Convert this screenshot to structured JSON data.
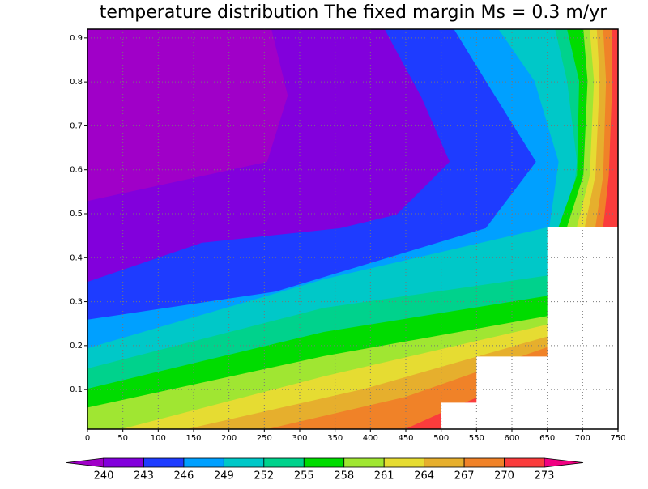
{
  "chart_data": {
    "type": "contour",
    "title": "temperature distribution The fixed margin Ms = 0.3 m/yr",
    "xlim": [
      0,
      750
    ],
    "ylim": [
      0.01,
      0.92
    ],
    "xticks": [
      0,
      50,
      100,
      150,
      200,
      250,
      300,
      350,
      400,
      450,
      500,
      550,
      600,
      650,
      700,
      750
    ],
    "yticks": [
      0.1,
      0.2,
      0.3,
      0.4,
      0.5,
      0.6,
      0.7,
      0.8,
      0.9
    ],
    "grid": true,
    "levels": [
      240,
      243,
      246,
      249,
      252,
      255,
      258,
      261,
      264,
      267,
      270,
      273
    ],
    "colors": [
      "#a000c8",
      "#8200dc",
      "#1e3cff",
      "#00a0ff",
      "#00c8c8",
      "#00d28c",
      "#00dc00",
      "#a0e632",
      "#e6dc32",
      "#e6af2d",
      "#f08228",
      "#fa3c3c",
      "#f00082"
    ],
    "contours": [
      {
        "level": 240,
        "x": [
          0,
          254,
          283,
          260
        ],
        "y": [
          0.529,
          0.618,
          0.769,
          0.92
        ]
      },
      {
        "level": 243,
        "x": [
          0,
          162,
          357,
          437,
          512,
          472,
          420
        ],
        "y": [
          0.345,
          0.434,
          0.467,
          0.498,
          0.618,
          0.765,
          0.92
        ]
      },
      {
        "level": 246,
        "x": [
          0,
          266,
          563,
          634,
          563,
          518
        ],
        "y": [
          0.259,
          0.323,
          0.467,
          0.618,
          0.802,
          0.92
        ]
      },
      {
        "level": 249,
        "x": [
          0,
          334,
          653,
          666,
          632,
          581
        ],
        "y": [
          0.194,
          0.351,
          0.47,
          0.618,
          0.802,
          0.92
        ]
      },
      {
        "level": 252,
        "x": [
          0,
          334,
          653,
          684,
          692,
          678,
          661
        ],
        "y": [
          0.148,
          0.286,
          0.36,
          0.507,
          0.618,
          0.802,
          0.92
        ]
      },
      {
        "level": 255,
        "x": [
          0,
          334,
          653,
          666,
          692,
          695,
          678
        ],
        "y": [
          0.102,
          0.231,
          0.314,
          0.47,
          0.587,
          0.802,
          0.92
        ]
      },
      {
        "level": 258,
        "x": [
          0,
          334,
          653,
          678,
          701,
          707,
          701
        ],
        "y": [
          0.059,
          0.176,
          0.268,
          0.47,
          0.587,
          0.802,
          0.92
        ]
      },
      {
        "level": 261,
        "x": [
          48,
          334,
          653,
          692,
          710,
          716,
          710
        ],
        "y": [
          0.01,
          0.13,
          0.249,
          0.47,
          0.587,
          0.802,
          0.92
        ]
      },
      {
        "level": 264,
        "x": [
          140,
          392,
          653,
          703,
          718,
          724,
          720
        ],
        "y": [
          0.01,
          0.102,
          0.222,
          0.47,
          0.587,
          0.802,
          0.92
        ]
      },
      {
        "level": 267,
        "x": [
          254,
          449,
          653,
          718,
          729,
          733,
          729
        ],
        "y": [
          0.01,
          0.083,
          0.198,
          0.47,
          0.587,
          0.802,
          0.92
        ]
      },
      {
        "level": 270,
        "x": [
          449,
          500,
          552,
          653,
          729,
          737,
          742,
          741
        ],
        "y": [
          0.01,
          0.047,
          0.083,
          0.166,
          0.47,
          0.587,
          0.802,
          0.92
        ]
      }
    ],
    "missing": {
      "x": [
        500,
        500,
        550,
        550,
        650,
        650,
        750,
        750
      ],
      "y": [
        0.01,
        0.07,
        0.07,
        0.175,
        0.175,
        0.47,
        0.47,
        0.01
      ]
    }
  }
}
